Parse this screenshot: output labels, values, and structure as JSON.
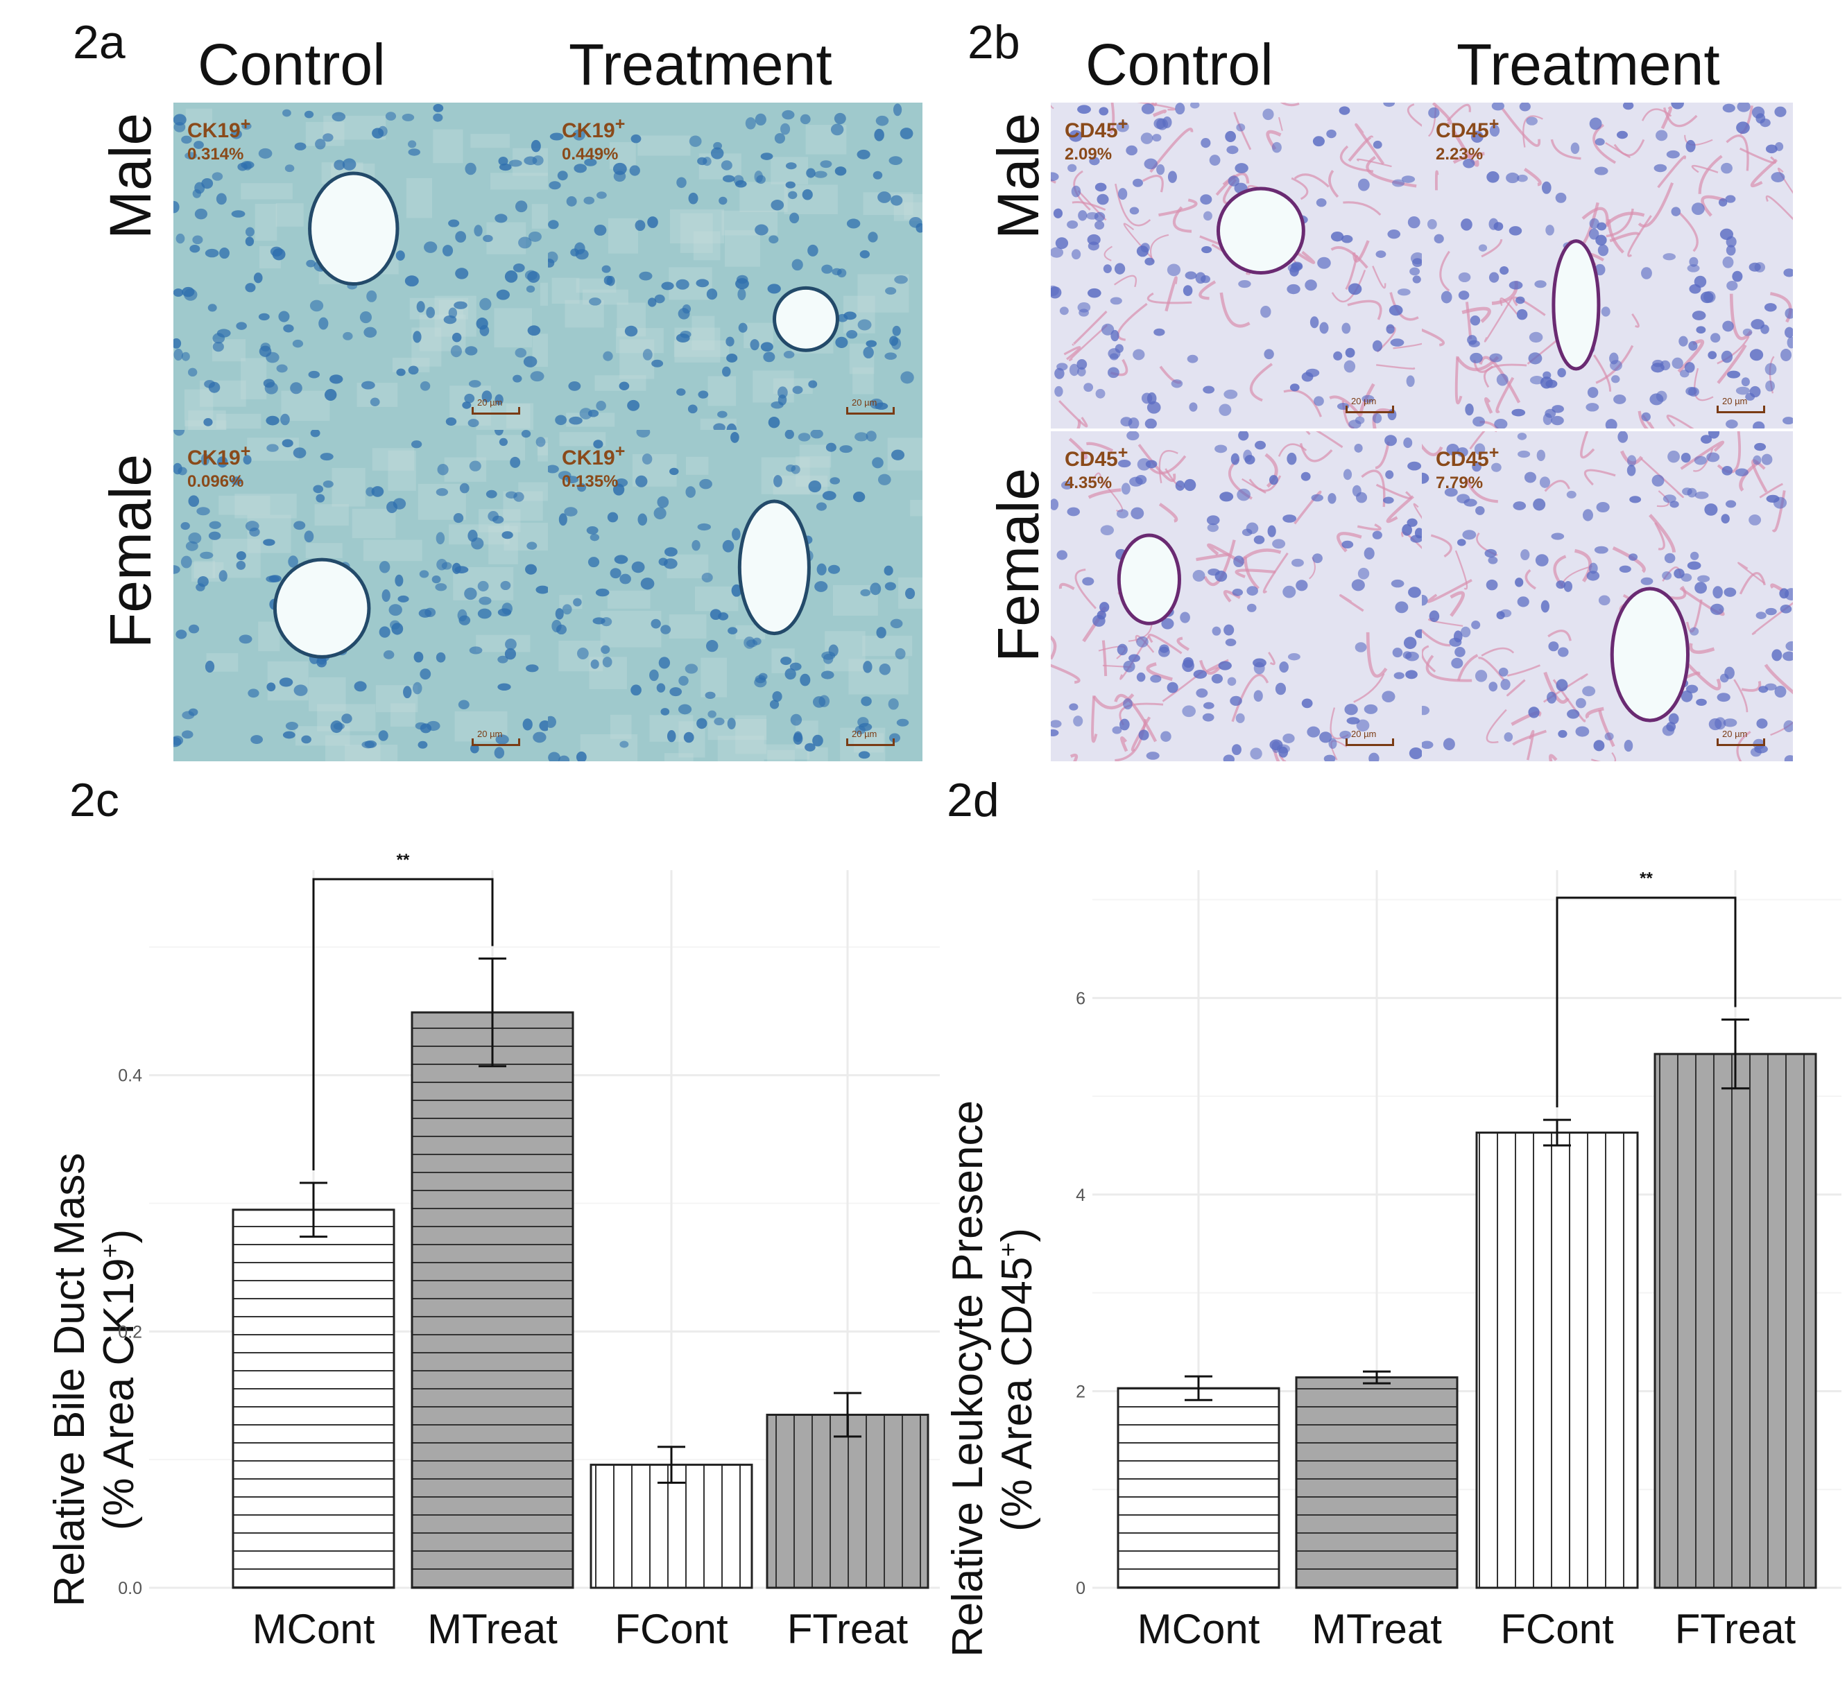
{
  "panels": {
    "a": {
      "label": "2a",
      "col_control": "Control",
      "col_treatment": "Treatment",
      "row_male": "Male",
      "row_female": "Female",
      "images": [
        {
          "marker": "CK19",
          "pct": "0.314%",
          "scale": "20 µm"
        },
        {
          "marker": "CK19",
          "pct": "0.449%",
          "scale": "20 µm"
        },
        {
          "marker": "CK19",
          "pct": "0.096%",
          "scale": "20 µm"
        },
        {
          "marker": "CK19",
          "pct": "0.135%",
          "scale": "20 µm"
        }
      ]
    },
    "b": {
      "label": "2b",
      "col_control": "Control",
      "col_treatment": "Treatment",
      "row_male": "Male",
      "row_female": "Female",
      "images": [
        {
          "marker": "CD45",
          "pct": "2.09%",
          "scale": "20 µm"
        },
        {
          "marker": "CD45",
          "pct": "2.23%",
          "scale": "20 µm"
        },
        {
          "marker": "CD45",
          "pct": "4.35%",
          "scale": "20 µm"
        },
        {
          "marker": "CD45",
          "pct": "7.79%",
          "scale": "20 µm"
        }
      ]
    },
    "c": {
      "label": "2c"
    },
    "d": {
      "label": "2d"
    }
  },
  "sup_plus": "+",
  "colors": {
    "ck19_bg": "#9fc9cc",
    "ck19_nuclei": "#2f6fae",
    "cd45_bg": "#e3e3f1",
    "cd45_stain": "#d98fae",
    "cd45_nuclei": "#5a6bc2",
    "label_brown": "#8a4a1a",
    "bar_white": "#ffffff",
    "bar_gray": "#a8a8a8",
    "grid": "#ebebeb"
  },
  "chart_data": [
    {
      "type": "bar",
      "panel": "2c",
      "categories": [
        "MCont",
        "MTreat",
        "FCont",
        "FTreat"
      ],
      "values": [
        0.295,
        0.449,
        0.096,
        0.135
      ],
      "errors": [
        0.021,
        0.042,
        0.014,
        0.017
      ],
      "fills": [
        "white",
        "gray",
        "white",
        "gray"
      ],
      "hatch": [
        "horizontal",
        "horizontal",
        "vertical",
        "vertical"
      ],
      "ylabel_line1": "Relative Bile Duct Mass",
      "ylabel_line2_pre": "(% Area CK19",
      "ylabel_line2_post": ")",
      "ylim": [
        0,
        0.56
      ],
      "yticks": [
        0.0,
        0.2,
        0.4
      ],
      "ytick_labels": [
        "0.0",
        "0.2",
        "0.4"
      ],
      "significance": {
        "from": 0,
        "to": 1,
        "y": 0.553,
        "label": "**"
      }
    },
    {
      "type": "bar",
      "panel": "2d",
      "categories": [
        "MCont",
        "MTreat",
        "FCont",
        "FTreat"
      ],
      "values": [
        2.03,
        2.14,
        4.63,
        5.43
      ],
      "errors": [
        0.12,
        0.06,
        0.13,
        0.35
      ],
      "fills": [
        "white",
        "gray",
        "white",
        "gray"
      ],
      "hatch": [
        "horizontal",
        "horizontal",
        "vertical",
        "vertical"
      ],
      "ylabel_line1": "Relative Leukocyte Presence",
      "ylabel_line2_pre": "(% Area CD45",
      "ylabel_line2_post": ")",
      "ylim": [
        0,
        7.3
      ],
      "yticks": [
        0,
        2,
        4,
        6
      ],
      "ytick_labels": [
        "0",
        "2",
        "4",
        "6"
      ],
      "significance": {
        "from": 2,
        "to": 3,
        "y": 7.02,
        "label": "**"
      }
    }
  ]
}
